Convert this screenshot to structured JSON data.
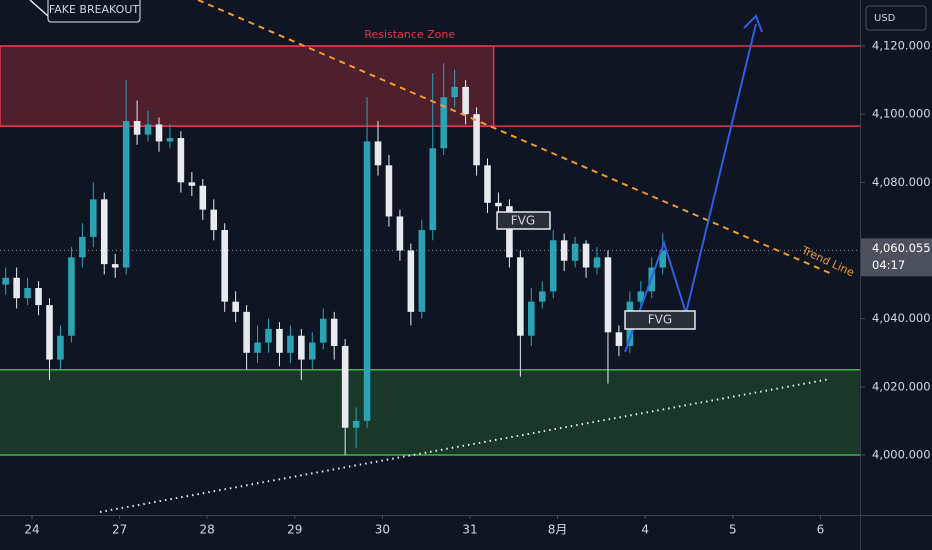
{
  "chart_data": {
    "type": "candlestick",
    "currency": "USD",
    "x": [
      -0.3,
      -0.175,
      -0.05,
      0.075,
      0.2,
      0.325,
      0.45,
      0.575,
      0.7,
      0.825,
      0.95,
      1.075,
      1.2,
      1.325,
      1.45,
      1.575,
      1.7,
      1.825,
      1.95,
      2.075,
      2.2,
      2.325,
      2.45,
      2.575,
      2.7,
      2.825,
      2.95,
      3.075,
      3.2,
      3.325,
      3.45,
      3.575,
      3.7,
      3.825,
      3.95,
      4.075,
      4.2,
      4.325,
      4.45,
      4.575,
      4.7,
      4.825,
      4.95,
      5.075,
      5.2,
      5.325,
      5.45,
      5.575,
      5.7,
      5.825,
      5.95,
      6.075,
      6.2,
      6.325,
      6.45,
      6.575,
      6.7,
      6.825,
      6.95,
      7.075,
      7.2
    ],
    "open": [
      4050,
      4052,
      4046,
      4049,
      4044,
      4028,
      4035,
      4058,
      4064,
      4075,
      4056,
      4055,
      4098,
      4094,
      4097,
      4092,
      4093,
      4080,
      4079,
      4072,
      4066,
      4045,
      4042,
      4030,
      4033,
      4037,
      4030,
      4035,
      4028,
      4033,
      4040,
      4032,
      4008,
      4010,
      4092,
      4085,
      4070,
      4060,
      4042,
      4066,
      4090,
      4105,
      4108,
      4100,
      4085,
      4074,
      4073,
      4058,
      4035,
      4045,
      4048,
      4063,
      4057,
      4062,
      4055,
      4058,
      4036,
      4032,
      4045,
      4048,
      4055
    ],
    "high": [
      4055,
      4055,
      4052,
      4051,
      4046,
      4038,
      4061,
      4068,
      4080,
      4077,
      4059,
      4110,
      4104,
      4101,
      4099,
      4097,
      4095,
      4083,
      4081,
      4075,
      4068,
      4048,
      4044,
      4038,
      4040,
      4039,
      4038,
      4037,
      4036,
      4043,
      4042,
      4034,
      4014,
      4105,
      4098,
      4088,
      4072,
      4062,
      4069,
      4112,
      4115,
      4113,
      4110,
      4102,
      4087,
      4077,
      4075,
      4060,
      4049,
      4051,
      4066,
      4065,
      4064,
      4063,
      4061,
      4060,
      4038,
      4048,
      4051,
      4058,
      4065
    ],
    "low": [
      4047,
      4043,
      4044,
      4041,
      4022,
      4025,
      4033,
      4055,
      4061,
      4053,
      4052,
      4053,
      4091,
      4092,
      4089,
      4090,
      4077,
      4076,
      4069,
      4063,
      4042,
      4039,
      4025,
      4027,
      4030,
      4026,
      4027,
      4022,
      4025,
      4031,
      4028,
      4000,
      4002,
      4008,
      4082,
      4067,
      4057,
      4038,
      4040,
      4063,
      4088,
      4102,
      4097,
      4082,
      4071,
      4070,
      4055,
      4023,
      4032,
      4043,
      4046,
      4054,
      4055,
      4052,
      4053,
      4021,
      4029,
      4030,
      4043,
      4046,
      4053
    ],
    "close": [
      4052,
      4046,
      4049,
      4044,
      4028,
      4035,
      4058,
      4064,
      4075,
      4056,
      4055,
      4098,
      4094,
      4097,
      4092,
      4093,
      4080,
      4079,
      4072,
      4066,
      4045,
      4042,
      4030,
      4033,
      4037,
      4030,
      4035,
      4028,
      4033,
      4040,
      4032,
      4008,
      4010,
      4092,
      4085,
      4070,
      4060,
      4042,
      4066,
      4090,
      4105,
      4108,
      4100,
      4085,
      4074,
      4073,
      4058,
      4035,
      4045,
      4048,
      4063,
      4057,
      4062,
      4055,
      4058,
      4036,
      4032,
      4045,
      4048,
      4055,
      4060
    ],
    "up_color": "#2ba3b5",
    "down_color": "#e8eaf0",
    "xlim": [
      -0.365,
      9.452
    ],
    "xticks": [
      {
        "value": 0,
        "label": "24"
      },
      {
        "value": 1,
        "label": "27"
      },
      {
        "value": 2,
        "label": "28"
      },
      {
        "value": 3,
        "label": "29"
      },
      {
        "value": 4,
        "label": "30"
      },
      {
        "value": 5,
        "label": "31"
      },
      {
        "value": 6,
        "label": "8月"
      },
      {
        "value": 7,
        "label": "4"
      },
      {
        "value": 8,
        "label": "5"
      },
      {
        "value": 9,
        "label": "6"
      }
    ],
    "ylim": [
      3982.4,
      4133.5
    ],
    "yticks": [
      {
        "value": 4000,
        "label": "4,000.000"
      },
      {
        "value": 4020,
        "label": "4,020.000"
      },
      {
        "value": 4040,
        "label": "4,040.000"
      },
      {
        "value": 4060,
        "label": "4,060.000"
      },
      {
        "value": 4080,
        "label": "4,080.000"
      },
      {
        "value": 4100,
        "label": "4,100.000"
      },
      {
        "value": 4120,
        "label": "4,120.000"
      }
    ],
    "current_price": {
      "value": 4060.055,
      "label": "4,060.055"
    },
    "countdown": "04:17",
    "resistance_zone": {
      "label": "Resistance Zone",
      "range": [
        4096.5,
        4120
      ],
      "x_end": 5.27,
      "color": "#e0374a"
    },
    "support_zone": {
      "range": [
        4000,
        4025
      ],
      "color": "#3fb54a"
    },
    "annotations": {
      "fake_breakout": "FAKE BREAKOUT",
      "fvg_1": "FVG",
      "fvg_2": "FVG",
      "trend_line": "Trend Line"
    }
  }
}
